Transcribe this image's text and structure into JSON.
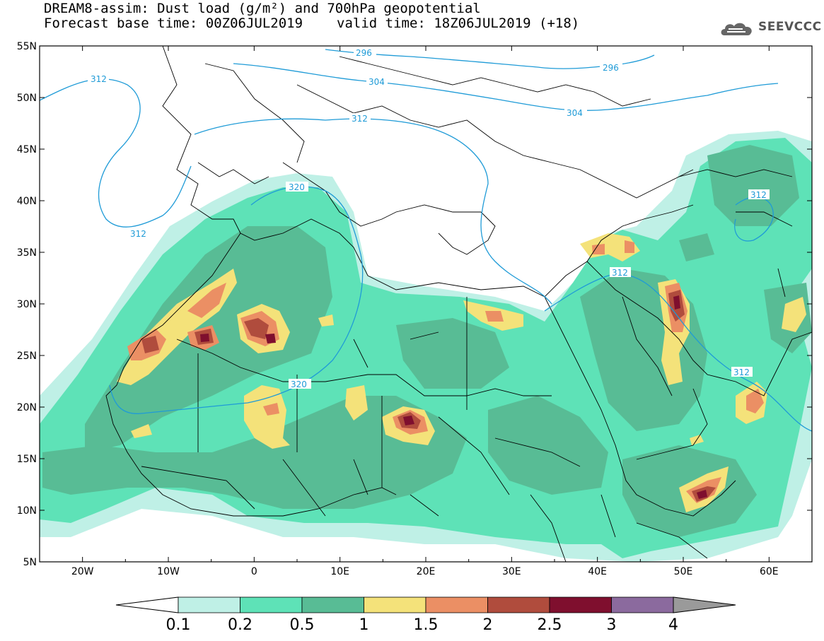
{
  "header": {
    "title": "DREAM8-assim: Dust load (g/m²) and 700hPa geopotential",
    "base_time": "Forecast base time: 00Z06JUL2019",
    "valid_time": "valid time: 18Z06JUL2019 (+18)"
  },
  "logo": {
    "text": "SEEVCCC",
    "icon": "cloud-icon",
    "color": "#555555"
  },
  "map": {
    "lon_range": [
      -25,
      65
    ],
    "lat_range": [
      5,
      55
    ],
    "lat_ticks": [
      "5N",
      "10N",
      "15N",
      "20N",
      "25N",
      "30N",
      "35N",
      "40N",
      "45N",
      "50N",
      "55N"
    ],
    "lon_ticks": [
      "20W",
      "10W",
      "0",
      "10E",
      "20E",
      "30E",
      "40E",
      "50E",
      "60E"
    ],
    "contour_color": "#1f9bd7",
    "contour_labels": [
      "312",
      "296",
      "304",
      "304",
      "312",
      "320",
      "312",
      "320",
      "312",
      "312",
      "296"
    ]
  },
  "colorbar": {
    "labels": [
      "0.1",
      "0.2",
      "0.5",
      "1",
      "1.5",
      "2",
      "2.5",
      "3",
      "4"
    ],
    "colors": [
      "#bff0e6",
      "#5ee2b7",
      "#58bc95",
      "#f4e27a",
      "#eb8f64",
      "#b04c3d",
      "#7f0f2e",
      "#8b6a9e",
      "#9a9a9a"
    ]
  }
}
